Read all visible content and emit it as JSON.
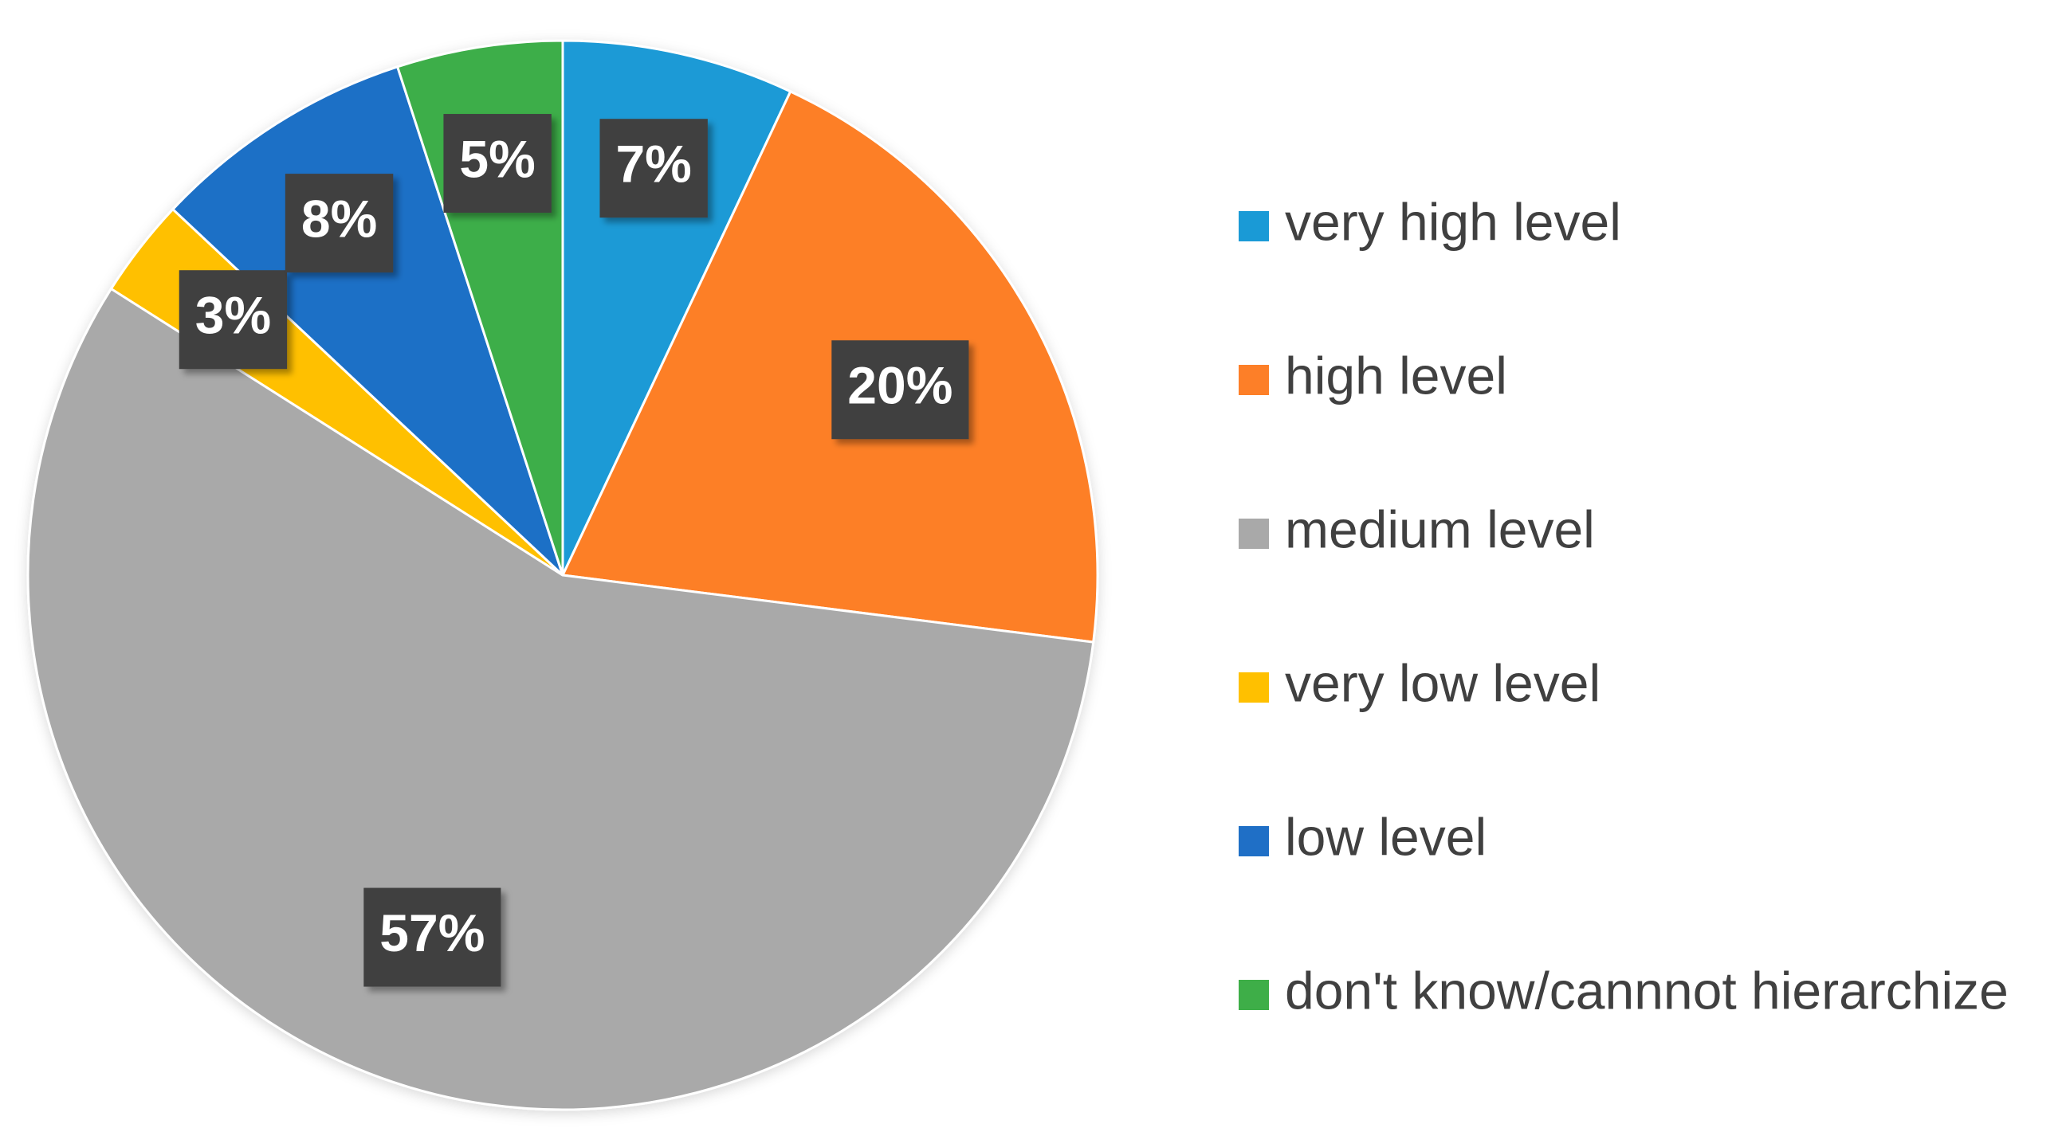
{
  "chart_data": {
    "type": "pie",
    "categories": [
      "very high level",
      "high level",
      "medium level",
      "very low level",
      "low level",
      "don't know/cannnot hierarchize"
    ],
    "values": [
      7,
      20,
      57,
      3,
      8,
      5
    ],
    "value_labels": [
      "7%",
      "20%",
      "57%",
      "3%",
      "8%",
      "5%"
    ],
    "colors": [
      "#1a9ad6",
      "#fd7f28",
      "#a9a9a9",
      "#ffc000",
      "#1f6fc6",
      "#3eae48"
    ],
    "legend": "right"
  }
}
